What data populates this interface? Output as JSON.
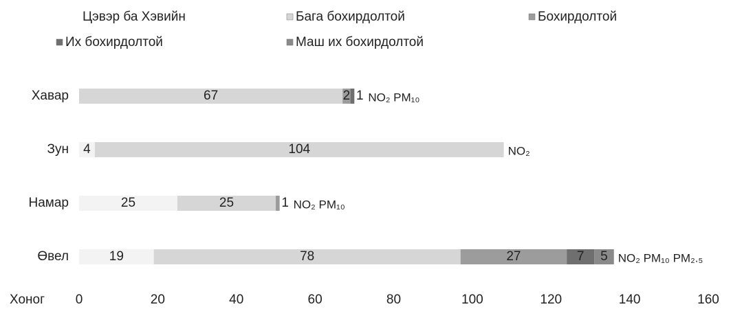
{
  "chart_data": {
    "type": "stacked_barh",
    "categories": [
      "Хавар",
      "Зун",
      "Намар",
      "Өвел"
    ],
    "series": [
      {
        "name": "Цэвэр ба Хэвийн",
        "color": "#f3f3f3",
        "values": [
          null,
          4,
          25,
          19
        ]
      },
      {
        "name": "Бага бохирдолтой",
        "color": "#d6d6d6",
        "values": [
          67,
          104,
          25,
          78
        ]
      },
      {
        "name": "Бохирдолтой",
        "color": "#9c9c9c",
        "values": [
          2,
          null,
          1,
          27
        ]
      },
      {
        "name": "Их бохирдолтой",
        "color": "#6f6f6f",
        "values": [
          1,
          null,
          null,
          7
        ]
      },
      {
        "name": "Маш их бохирдолтой",
        "color": "#8a8a8a",
        "values": [
          null,
          null,
          null,
          5
        ]
      }
    ],
    "annotations": [
      "NO₂ PM₁₀",
      "NO₂",
      "NO₂ PM₁₀",
      "NO₂ PM₁₀ PM₂.₅"
    ],
    "xlabel": "Хоног",
    "xlim": [
      0,
      160
    ],
    "xticks": [
      0,
      20,
      40,
      60,
      80,
      100,
      120,
      140,
      160
    ]
  }
}
